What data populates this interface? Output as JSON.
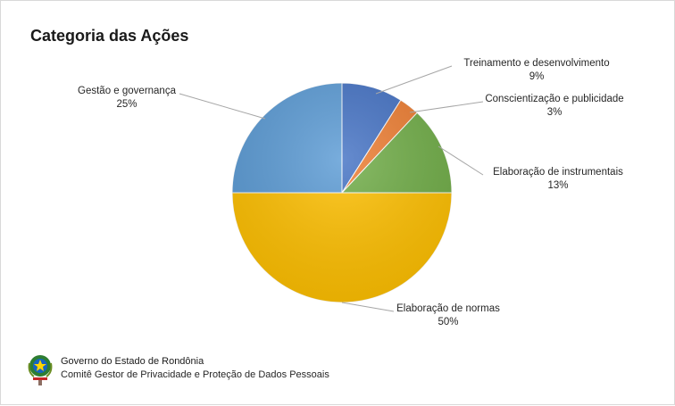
{
  "chart_data": {
    "type": "pie",
    "title": "Categoria das Ações",
    "slices": [
      {
        "label": "Treinamento e desenvolvimento",
        "value": 9,
        "display": "9%",
        "color": "#4472c4"
      },
      {
        "label": "Conscientização  e publicidade",
        "value": 3,
        "display": "3%",
        "color": "#ed7d31"
      },
      {
        "label": "Elaboração  de instrumentais",
        "value": 13,
        "display": "13%",
        "color": "#70ad47"
      },
      {
        "label": "Elaboração  de normas",
        "value": 50,
        "display": "50%",
        "color": "#ffc000"
      },
      {
        "label": "Gestão  e governança",
        "value": 25,
        "display": "25%",
        "color": "#5b9bd5"
      }
    ]
  },
  "footer": {
    "org_name": "Governo do Estado de Rondônia",
    "committee": "Comitê Gestor de Privacidade e Proteção de Dados Pessoais",
    "logo_icon": "state-coat-of-arms-icon"
  }
}
